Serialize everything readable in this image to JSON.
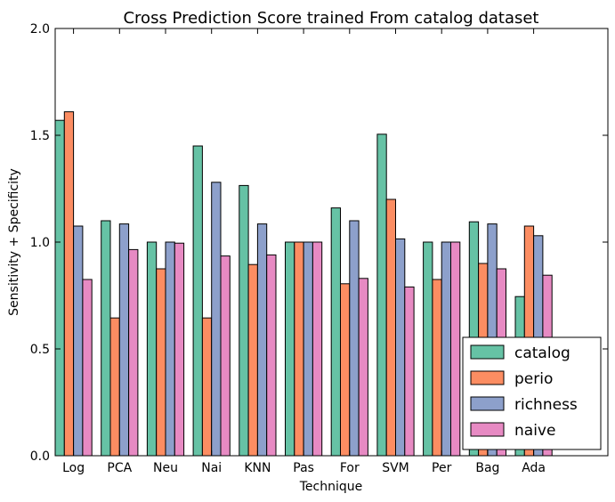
{
  "chart_data": {
    "type": "bar",
    "title": "Cross Prediction Score trained From catalog dataset",
    "xlabel": "Technique",
    "ylabel": "Sensitivity + Specificity",
    "ylim": [
      0,
      2.0
    ],
    "yticks": [
      "0.0",
      "0.5",
      "1.0",
      "1.5",
      "2.0"
    ],
    "grid": false,
    "legend_position": "bottom-right",
    "categories": [
      "Log",
      "PCA",
      "Neu",
      "Nai",
      "KNN",
      "Pas",
      "For",
      "SVM",
      "Per",
      "Bag",
      "Ada"
    ],
    "series": [
      {
        "name": "catalog",
        "color": "#66c2a5",
        "values": [
          1.57,
          1.1,
          1.0,
          1.45,
          1.265,
          1.0,
          1.16,
          1.505,
          1.0,
          1.095,
          0.745
        ]
      },
      {
        "name": "perio",
        "color": "#fc8d62",
        "values": [
          1.61,
          0.645,
          0.875,
          0.645,
          0.895,
          1.0,
          0.805,
          1.2,
          0.825,
          0.9,
          1.075
        ]
      },
      {
        "name": "richness",
        "color": "#8da0cb",
        "values": [
          1.075,
          1.085,
          1.0,
          1.28,
          1.085,
          1.0,
          1.1,
          1.015,
          1.0,
          1.085,
          1.03
        ]
      },
      {
        "name": "naive",
        "color": "#e78ac3",
        "values": [
          0.825,
          0.965,
          0.995,
          0.935,
          0.94,
          1.0,
          0.83,
          0.79,
          1.0,
          0.875,
          0.845
        ]
      }
    ]
  }
}
